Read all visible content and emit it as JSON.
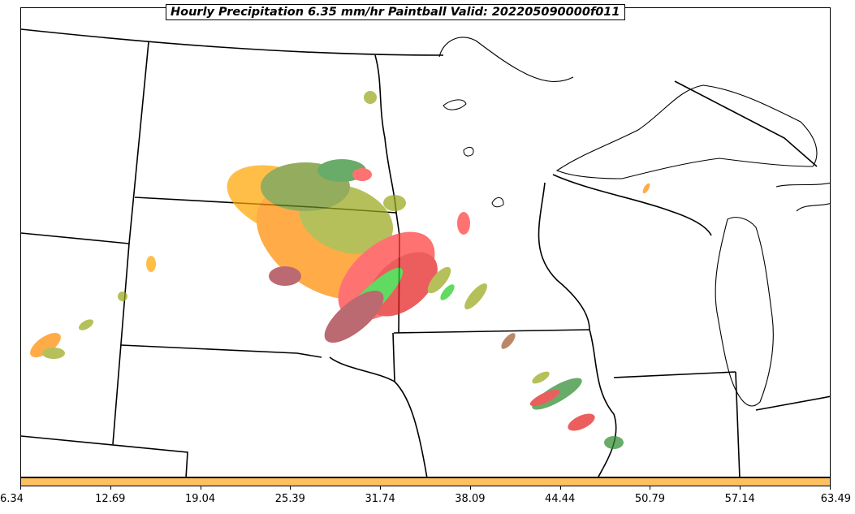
{
  "title": "Hourly Precipitation 6.35 mm/hr Paintball Valid: 202205090000f011",
  "colorbar": {
    "color": "#ffc060",
    "ticks": [
      "6.34",
      "12.69",
      "19.04",
      "25.39",
      "31.74",
      "38.09",
      "44.44",
      "50.79",
      "57.14",
      "63.49"
    ]
  },
  "member_colors": [
    "#ffa500",
    "#ff8c00",
    "#e51f1f",
    "#ff3b3b",
    "#a0303a",
    "#6a8c1f",
    "#9aa81a",
    "#2e8b2e",
    "#22cc22",
    "#a05a2c"
  ],
  "land_color": "#ffffff",
  "boundary_color": "#000000"
}
